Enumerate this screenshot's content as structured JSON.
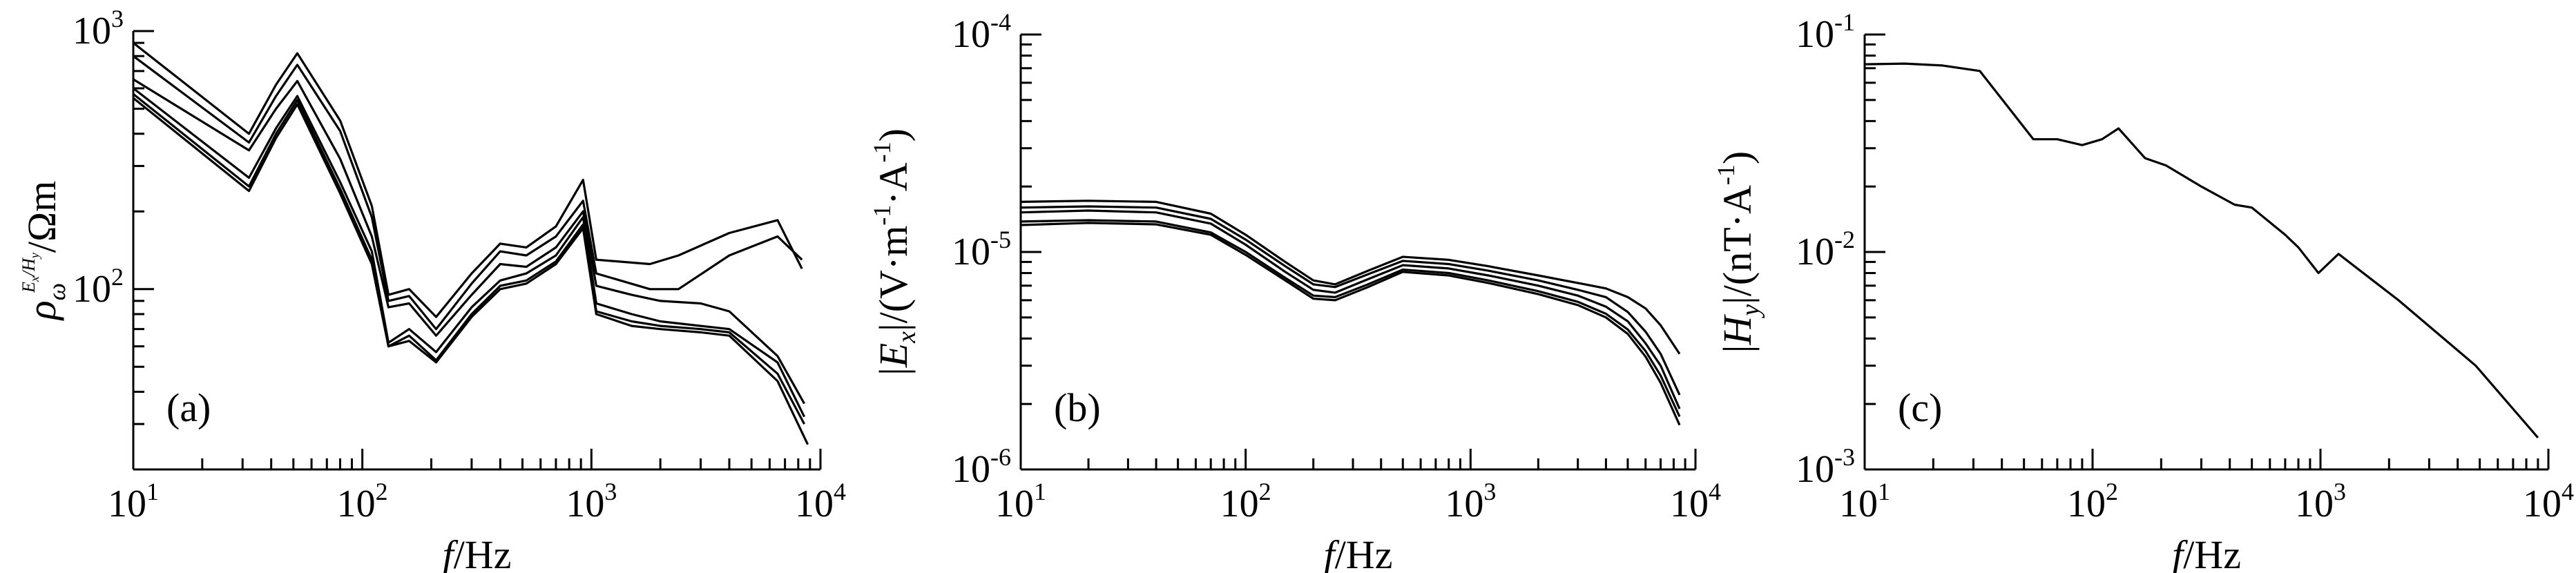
{
  "chart_data": [
    {
      "type": "line",
      "panel_label": "(a)",
      "xscale": "log",
      "yscale": "log",
      "xlim": [
        10,
        10000
      ],
      "ylim": [
        20,
        1000
      ],
      "xlabel_var": "f",
      "xlabel_unit": "/Hz",
      "ylabel_var": "ρ",
      "ylabel_sub": "ω",
      "ylabel_sup": "E",
      "ylabel_sup2": "x",
      "ylabel_sup3": "/H",
      "ylabel_sup4": "y",
      "ylabel_unit": "/Ωm",
      "xtick_labels": [
        {
          "base": "10",
          "exp": "1"
        },
        {
          "base": "10",
          "exp": "2"
        },
        {
          "base": "10",
          "exp": "3"
        },
        {
          "base": "10",
          "exp": "4"
        }
      ],
      "ytick_labels": [
        {
          "base": "10",
          "exp": "2"
        },
        {
          "base": "10",
          "exp": "3"
        }
      ],
      "series": [
        {
          "x": [
            10,
            32,
            42,
            52,
            80,
            110,
            130,
            160,
            210,
            300,
            400,
            520,
            700,
            920,
            1050,
            1800,
            2400,
            4000,
            6500,
            8300
          ],
          "y": [
            900,
            400,
            620,
            820,
            450,
            210,
            95,
            100,
            78,
            115,
            150,
            145,
            175,
            265,
            130,
            125,
            135,
            165,
            185,
            120
          ]
        },
        {
          "x": [
            10,
            32,
            42,
            52,
            80,
            110,
            130,
            160,
            210,
            300,
            400,
            520,
            700,
            920,
            1050,
            1800,
            2400,
            4000,
            6500,
            8300
          ],
          "y": [
            800,
            370,
            560,
            740,
            410,
            190,
            90,
            94,
            70,
            105,
            140,
            135,
            160,
            220,
            115,
            100,
            100,
            135,
            160,
            130
          ]
        },
        {
          "x": [
            10,
            32,
            42,
            52,
            80,
            110,
            130,
            160,
            210,
            300,
            400,
            520,
            700,
            920,
            1050,
            1500,
            2000,
            3000,
            4000,
            6500,
            8500
          ],
          "y": [
            650,
            345,
            500,
            640,
            320,
            160,
            85,
            88,
            66,
            95,
            125,
            122,
            145,
            200,
            103,
            95,
            90,
            88,
            82,
            55,
            36
          ]
        },
        {
          "x": [
            10,
            32,
            42,
            52,
            80,
            110,
            130,
            160,
            210,
            300,
            400,
            520,
            700,
            920,
            1050,
            1500,
            2000,
            3000,
            4000,
            6500,
            8500
          ],
          "y": [
            600,
            270,
            420,
            560,
            260,
            140,
            62,
            70,
            57,
            85,
            108,
            115,
            135,
            190,
            88,
            80,
            75,
            72,
            70,
            52,
            32
          ]
        },
        {
          "x": [
            10,
            32,
            42,
            52,
            80,
            110,
            130,
            160,
            210,
            300,
            400,
            520,
            700,
            920,
            1050,
            1500,
            2000,
            3000,
            4000,
            6500,
            8500
          ],
          "y": [
            570,
            250,
            400,
            540,
            245,
            130,
            60,
            66,
            53,
            80,
            103,
            108,
            128,
            178,
            82,
            75,
            72,
            70,
            68,
            47,
            30
          ]
        },
        {
          "x": [
            10,
            32,
            42,
            52,
            80,
            110,
            130,
            160,
            210,
            300,
            400,
            520,
            700,
            920,
            1050,
            1500,
            2000,
            3000,
            4000,
            6500,
            8800
          ],
          "y": [
            550,
            240,
            385,
            520,
            235,
            125,
            60,
            63,
            52,
            78,
            100,
            105,
            125,
            172,
            80,
            72,
            70,
            68,
            66,
            44,
            25
          ]
        }
      ]
    },
    {
      "type": "line",
      "panel_label": "(b)",
      "xscale": "log",
      "yscale": "log",
      "xlim": [
        10,
        10000
      ],
      "ylim": [
        1e-06,
        0.0001
      ],
      "xlabel_var": "f",
      "xlabel_unit": "/Hz",
      "ylabel_open": "|",
      "ylabel_var": "E",
      "ylabel_sub": "x",
      "ylabel_close": "|/(V·m",
      "ylabel_sup": "-1",
      "ylabel_mid": "·A",
      "ylabel_sup2": "-1",
      "ylabel_end": ")",
      "xtick_labels": [
        {
          "base": "10",
          "exp": "1"
        },
        {
          "base": "10",
          "exp": "2"
        },
        {
          "base": "10",
          "exp": "3"
        },
        {
          "base": "10",
          "exp": "4"
        }
      ],
      "ytick_labels": [
        {
          "base": "10",
          "exp": "-6"
        },
        {
          "base": "10",
          "exp": "-5"
        },
        {
          "base": "10",
          "exp": "-4"
        }
      ],
      "series": [
        {
          "x": [
            10,
            20,
            40,
            70,
            100,
            150,
            200,
            250,
            350,
            500,
            800,
            1200,
            2000,
            3000,
            4000,
            5000,
            6000,
            7000,
            8500
          ],
          "y": [
            1.7e-05,
            1.72e-05,
            1.7e-05,
            1.5e-05,
            1.2e-05,
            9e-06,
            7.4e-06,
            7.1e-06,
            8.2e-06,
            9.5e-06,
            9.2e-06,
            8.6e-06,
            7.8e-06,
            7.2e-06,
            6.8e-06,
            6.2e-06,
            5.5e-06,
            4.6e-06,
            3.4e-06
          ]
        },
        {
          "x": [
            10,
            20,
            40,
            70,
            100,
            150,
            200,
            250,
            350,
            500,
            800,
            1200,
            2000,
            3000,
            4000,
            5000,
            6000,
            7000,
            8500
          ],
          "y": [
            1.6e-05,
            1.62e-05,
            1.6e-05,
            1.42e-05,
            1.14e-05,
            8.6e-06,
            7.1e-06,
            6.9e-06,
            7.9e-06,
            9.1e-06,
            8.8e-06,
            8.2e-06,
            7.4e-06,
            6.7e-06,
            6.2e-06,
            5.3e-06,
            4.3e-06,
            3.4e-06,
            2.2e-06
          ]
        },
        {
          "x": [
            10,
            20,
            40,
            70,
            100,
            150,
            200,
            250,
            350,
            500,
            800,
            1200,
            2000,
            3000,
            4000,
            5000,
            6000,
            7000,
            8500
          ],
          "y": [
            1.52e-05,
            1.55e-05,
            1.52e-05,
            1.35e-05,
            1.08e-05,
            8.1e-06,
            6.7e-06,
            6.5e-06,
            7.5e-06,
            8.7e-06,
            8.4e-06,
            7.8e-06,
            7e-06,
            6.3e-06,
            5.6e-06,
            4.8e-06,
            3.8e-06,
            3e-06,
            1.9e-06
          ]
        },
        {
          "x": [
            10,
            20,
            40,
            70,
            100,
            150,
            200,
            250,
            350,
            500,
            800,
            1200,
            2000,
            3000,
            4000,
            5000,
            6000,
            7000,
            8500
          ],
          "y": [
            1.38e-05,
            1.4e-05,
            1.38e-05,
            1.23e-05,
            1e-05,
            7.6e-06,
            6.3e-06,
            6.2e-06,
            7.1e-06,
            8.3e-06,
            8e-06,
            7.4e-06,
            6.6e-06,
            5.9e-06,
            5.2e-06,
            4.4e-06,
            3.5e-06,
            2.7e-06,
            1.75e-06
          ]
        },
        {
          "x": [
            10,
            20,
            40,
            70,
            100,
            150,
            200,
            250,
            350,
            500,
            800,
            1200,
            2000,
            3000,
            4000,
            5000,
            6000,
            7000,
            8500
          ],
          "y": [
            1.33e-05,
            1.36e-05,
            1.34e-05,
            1.2e-05,
            9.7e-06,
            7.4e-06,
            6.1e-06,
            6e-06,
            6.9e-06,
            8.1e-06,
            7.8e-06,
            7.2e-06,
            6.4e-06,
            5.7e-06,
            5e-06,
            4.2e-06,
            3.3e-06,
            2.5e-06,
            1.6e-06
          ]
        }
      ]
    },
    {
      "type": "line",
      "panel_label": "(c)",
      "xscale": "log",
      "yscale": "log",
      "xlim": [
        10,
        10000
      ],
      "ylim": [
        0.001,
        0.1
      ],
      "xlabel_var": "f",
      "xlabel_unit": "/Hz",
      "ylabel_open": "|",
      "ylabel_var": "H",
      "ylabel_sub": "y",
      "ylabel_close": "|/(nT·A",
      "ylabel_sup": "-1",
      "ylabel_end": ")",
      "xtick_labels": [
        {
          "base": "10",
          "exp": "1"
        },
        {
          "base": "10",
          "exp": "2"
        },
        {
          "base": "10",
          "exp": "3"
        },
        {
          "base": "10",
          "exp": "4"
        }
      ],
      "ytick_labels": [
        {
          "base": "10",
          "exp": "-3"
        },
        {
          "base": "10",
          "exp": "-2"
        },
        {
          "base": "10",
          "exp": "-1"
        }
      ],
      "series": [
        {
          "x": [
            10,
            15,
            22,
            32,
            55,
            70,
            90,
            110,
            130,
            170,
            210,
            300,
            420,
            500,
            700,
            800,
            980,
            1200,
            2200,
            4800,
            9000
          ],
          "y": [
            0.073,
            0.0735,
            0.072,
            0.068,
            0.033,
            0.033,
            0.031,
            0.033,
            0.037,
            0.027,
            0.025,
            0.02,
            0.0165,
            0.016,
            0.012,
            0.0105,
            0.008,
            0.0098,
            0.006,
            0.003,
            0.0014
          ]
        }
      ]
    }
  ]
}
